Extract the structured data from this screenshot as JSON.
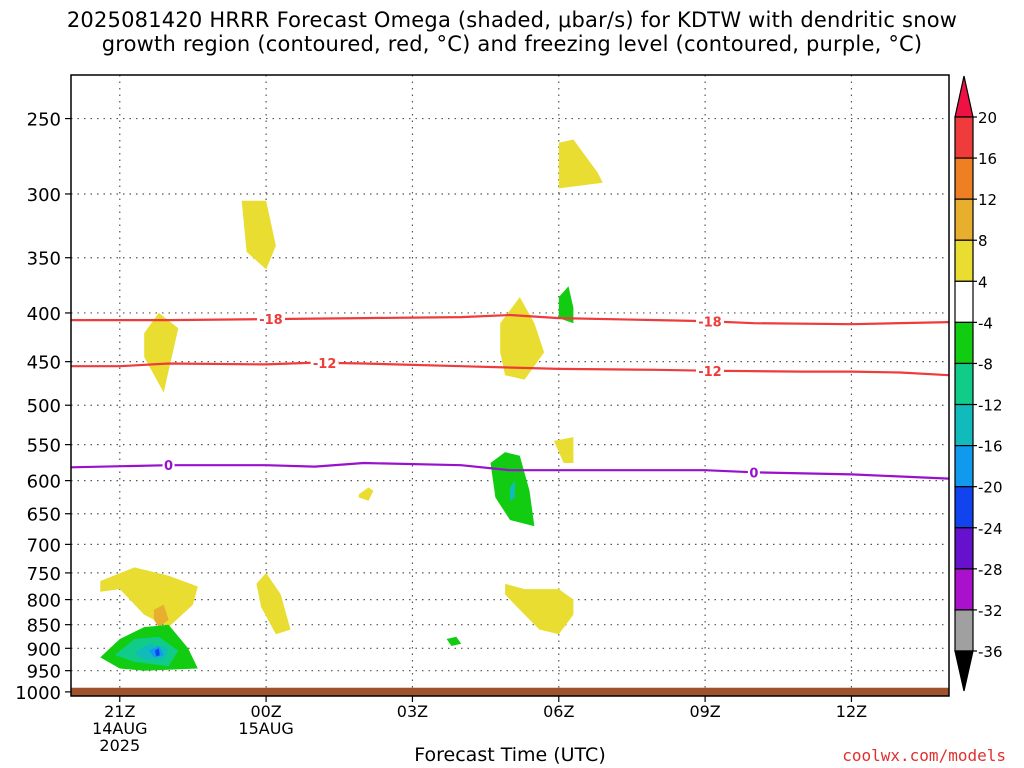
{
  "title": {
    "line1": "2025081420 HRRR Forecast Omega (shaded, μbar/s) for KDTW with dendritic snow",
    "line2": "growth region (contoured, red, °C) and freezing level (contoured, purple, °C)"
  },
  "credit": "coolwx.com/models",
  "chart_data": {
    "type": "contour",
    "title": "2025081420 HRRR Forecast Omega (shaded, μbar/s) for KDTW with dendritic snow growth region (contoured, red, °C) and freezing level (contoured, purple, °C)",
    "xlabel": "Forecast Time (UTC)",
    "ylabel": "",
    "x_unit": "forecast hour from 2025-08-14 20Z",
    "xlim": [
      0,
      18
    ],
    "x_ticks": [
      {
        "x": 1,
        "lines": [
          "21Z",
          "14AUG",
          "2025"
        ]
      },
      {
        "x": 4,
        "lines": [
          "00Z",
          "15AUG"
        ]
      },
      {
        "x": 7,
        "lines": [
          "03Z"
        ]
      },
      {
        "x": 10,
        "lines": [
          "06Z"
        ]
      },
      {
        "x": 13,
        "lines": [
          "09Z"
        ]
      },
      {
        "x": 16,
        "lines": [
          "12Z"
        ]
      }
    ],
    "y_scale": "log-pressure (hPa), inverted",
    "ylim": [
      200,
      1000
    ],
    "y_ticks": [
      250,
      300,
      350,
      400,
      450,
      500,
      550,
      600,
      650,
      700,
      750,
      800,
      850,
      900,
      950,
      1000
    ],
    "grid": true,
    "ground_below_hPa": 990,
    "colorbar": {
      "units": "μbar/s",
      "ticks": [
        20,
        16,
        12,
        8,
        4,
        -4,
        -8,
        -12,
        -16,
        -20,
        -24,
        -28,
        -32,
        -36
      ],
      "colors": [
        "#ee1144",
        "#ee3b3b",
        "#ee7f22",
        "#e8ae2e",
        "#e8dd30",
        "#ffffff",
        "#11cc11",
        "#11cc88",
        "#11bbbb",
        "#1199ee",
        "#1144ee",
        "#6611cc",
        "#aa11cc",
        "#a0a0a0",
        "#000000"
      ]
    },
    "contours": [
      {
        "name": "dendritic -18",
        "variable": "temperature",
        "level": -18,
        "label": "-18",
        "color": "#ee3b3b",
        "points": [
          [
            0,
            407
          ],
          [
            2,
            407
          ],
          [
            4,
            406
          ],
          [
            6,
            405
          ],
          [
            8,
            404
          ],
          [
            9,
            402
          ],
          [
            10,
            405
          ],
          [
            12,
            407
          ],
          [
            13,
            408
          ],
          [
            14,
            410
          ],
          [
            16,
            411
          ],
          [
            18,
            409
          ]
        ],
        "label_x": [
          4.1,
          13.1
        ]
      },
      {
        "name": "dendritic -12",
        "variable": "temperature",
        "level": -12,
        "label": "-12",
        "color": "#ee3b3b",
        "points": [
          [
            0,
            455
          ],
          [
            1,
            455
          ],
          [
            2,
            452
          ],
          [
            4,
            453
          ],
          [
            5,
            451
          ],
          [
            6,
            452
          ],
          [
            8,
            455
          ],
          [
            10,
            458
          ],
          [
            12,
            459
          ],
          [
            13,
            460
          ],
          [
            15,
            461
          ],
          [
            16,
            461
          ],
          [
            17,
            462
          ],
          [
            18,
            465
          ]
        ],
        "label_x": [
          5.2,
          13.1
        ]
      },
      {
        "name": "freezing level 0",
        "variable": "temperature",
        "level": 0,
        "label": "0",
        "color": "#9911cc",
        "points": [
          [
            0,
            581
          ],
          [
            2,
            578
          ],
          [
            4,
            578
          ],
          [
            5,
            580
          ],
          [
            6,
            575
          ],
          [
            8,
            578
          ],
          [
            9,
            585
          ],
          [
            10,
            585
          ],
          [
            12,
            585
          ],
          [
            13,
            585
          ],
          [
            14,
            588
          ],
          [
            16,
            591
          ],
          [
            18,
            597
          ]
        ],
        "label_x": [
          2.0,
          14.0
        ]
      }
    ],
    "omega_regions": [
      {
        "value_range": [
          4,
          8
        ],
        "color": "#e8dd30",
        "points": [
          [
            10.0,
            265
          ],
          [
            10.3,
            263
          ],
          [
            10.8,
            285
          ],
          [
            10.9,
            292
          ],
          [
            10.0,
            296
          ]
        ]
      },
      {
        "value_range": [
          4,
          8
        ],
        "color": "#e8dd30",
        "points": [
          [
            3.5,
            305
          ],
          [
            4.0,
            305
          ],
          [
            4.2,
            340
          ],
          [
            4.0,
            360
          ],
          [
            3.6,
            345
          ]
        ]
      },
      {
        "value_range": [
          4,
          8
        ],
        "color": "#e8dd30",
        "points": [
          [
            1.5,
            420
          ],
          [
            1.8,
            400
          ],
          [
            2.2,
            415
          ],
          [
            2.0,
            460
          ],
          [
            1.9,
            485
          ],
          [
            1.5,
            445
          ]
        ]
      },
      {
        "value_range": [
          4,
          8
        ],
        "color": "#e8dd30",
        "points": [
          [
            8.8,
            410
          ],
          [
            9.2,
            385
          ],
          [
            9.5,
            410
          ],
          [
            9.7,
            440
          ],
          [
            9.3,
            470
          ],
          [
            8.9,
            465
          ],
          [
            8.8,
            440
          ]
        ]
      },
      {
        "value_range": [
          -8,
          -4
        ],
        "color": "#11cc11",
        "points": [
          [
            10.0,
            385
          ],
          [
            10.2,
            375
          ],
          [
            10.3,
            395
          ],
          [
            10.3,
            410
          ],
          [
            10.0,
            405
          ]
        ]
      },
      {
        "value_range": [
          4,
          8
        ],
        "color": "#e8dd30",
        "points": [
          [
            9.9,
            545
          ],
          [
            10.3,
            540
          ],
          [
            10.3,
            555
          ],
          [
            10.3,
            575
          ],
          [
            10.1,
            575
          ]
        ]
      },
      {
        "value_range": [
          4,
          8
        ],
        "color": "#e8dd30",
        "points": [
          [
            5.9,
            620
          ],
          [
            6.1,
            610
          ],
          [
            6.2,
            615
          ],
          [
            6.1,
            630
          ],
          [
            5.9,
            625
          ]
        ]
      },
      {
        "value_range": [
          -8,
          -4
        ],
        "color": "#11cc11",
        "points": [
          [
            8.6,
            575
          ],
          [
            8.9,
            560
          ],
          [
            9.2,
            565
          ],
          [
            9.4,
            615
          ],
          [
            9.5,
            670
          ],
          [
            9.0,
            660
          ],
          [
            8.7,
            625
          ]
        ]
      },
      {
        "value_range": [
          -16,
          -12
        ],
        "color": "#11bbbb",
        "points": [
          [
            9.0,
            610
          ],
          [
            9.1,
            600
          ],
          [
            9.1,
            625
          ],
          [
            9.0,
            630
          ]
        ]
      },
      {
        "value_range": [
          4,
          8
        ],
        "color": "#e8dd30",
        "points": [
          [
            0.6,
            765
          ],
          [
            1.3,
            740
          ],
          [
            2.0,
            755
          ],
          [
            2.6,
            775
          ],
          [
            2.5,
            810
          ],
          [
            2.0,
            855
          ],
          [
            1.5,
            830
          ],
          [
            1.0,
            780
          ],
          [
            0.6,
            785
          ]
        ]
      },
      {
        "value_range": [
          8,
          12
        ],
        "color": "#e8ae2e",
        "points": [
          [
            1.7,
            820
          ],
          [
            1.9,
            810
          ],
          [
            2.0,
            840
          ],
          [
            1.8,
            855
          ],
          [
            1.7,
            840
          ]
        ]
      },
      {
        "value_range": [
          4,
          8
        ],
        "color": "#e8dd30",
        "points": [
          [
            3.8,
            770
          ],
          [
            4.0,
            750
          ],
          [
            4.3,
            790
          ],
          [
            4.5,
            860
          ],
          [
            4.2,
            870
          ],
          [
            3.9,
            815
          ]
        ]
      },
      {
        "value_range": [
          4,
          8
        ],
        "color": "#e8dd30",
        "points": [
          [
            8.9,
            770
          ],
          [
            9.3,
            780
          ],
          [
            10.0,
            780
          ],
          [
            10.3,
            800
          ],
          [
            10.3,
            830
          ],
          [
            10.0,
            870
          ],
          [
            9.6,
            860
          ],
          [
            9.2,
            820
          ],
          [
            8.9,
            790
          ]
        ]
      },
      {
        "value_range": [
          -8,
          -4
        ],
        "color": "#11cc11",
        "points": [
          [
            7.7,
            880
          ],
          [
            7.9,
            875
          ],
          [
            8.0,
            890
          ],
          [
            7.8,
            895
          ]
        ]
      },
      {
        "value_range": [
          -8,
          -4
        ],
        "color": "#11cc11",
        "points": [
          [
            0.6,
            920
          ],
          [
            1.0,
            880
          ],
          [
            1.5,
            855
          ],
          [
            2.0,
            850
          ],
          [
            2.4,
            900
          ],
          [
            2.6,
            945
          ],
          [
            1.5,
            950
          ],
          [
            1.0,
            945
          ]
        ]
      },
      {
        "value_range": [
          -12,
          -8
        ],
        "color": "#11cc88",
        "points": [
          [
            0.9,
            915
          ],
          [
            1.3,
            880
          ],
          [
            1.8,
            875
          ],
          [
            2.2,
            905
          ],
          [
            2.0,
            940
          ],
          [
            1.3,
            930
          ]
        ]
      },
      {
        "value_range": [
          -16,
          -12
        ],
        "color": "#11bbbb",
        "points": [
          [
            1.3,
            910
          ],
          [
            1.6,
            890
          ],
          [
            2.0,
            900
          ],
          [
            1.9,
            925
          ],
          [
            1.5,
            925
          ]
        ]
      },
      {
        "value_range": [
          -20,
          -16
        ],
        "color": "#1199ee",
        "points": [
          [
            1.6,
            905
          ],
          [
            1.8,
            895
          ],
          [
            1.9,
            915
          ],
          [
            1.7,
            920
          ]
        ]
      },
      {
        "value_range": [
          -24,
          -20
        ],
        "color": "#1144ee",
        "points": [
          [
            1.72,
            905
          ],
          [
            1.8,
            900
          ],
          [
            1.82,
            915
          ],
          [
            1.75,
            918
          ]
        ]
      }
    ]
  }
}
